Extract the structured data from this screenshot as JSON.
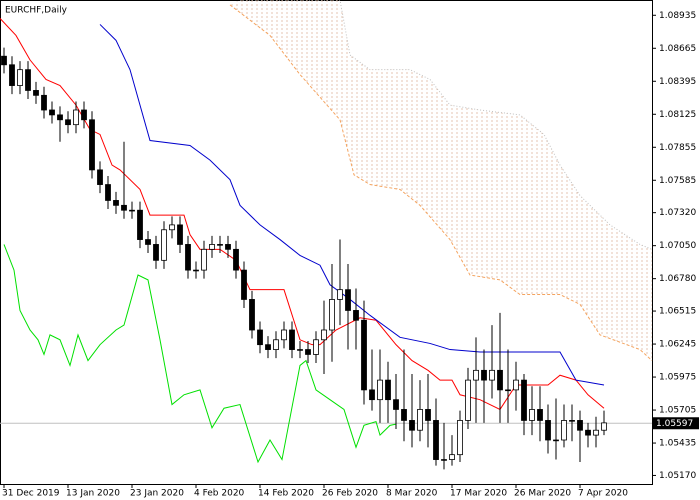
{
  "chart_data": {
    "type": "candlestick",
    "title": "EURCHF,Daily",
    "categories": [
      "31 Dec 2019",
      null,
      null,
      null,
      null,
      null,
      null,
      null,
      "13 Jan 2020",
      null,
      null,
      null,
      null,
      null,
      null,
      null,
      "23 Jan 2020",
      null,
      null,
      null,
      null,
      null,
      null,
      null,
      "4 Feb 2020",
      null,
      null,
      null,
      null,
      null,
      null,
      null,
      "14 Feb 2020",
      null,
      null,
      null,
      null,
      null,
      null,
      null,
      "26 Feb 2020",
      null,
      null,
      null,
      null,
      null,
      null,
      null,
      "8 Mar 2020",
      null,
      null,
      null,
      null,
      null,
      null,
      null,
      "17 Mar 2020",
      null,
      null,
      null,
      null,
      null,
      null,
      null,
      "26 Mar 2020",
      null,
      null,
      null,
      null,
      null,
      null,
      null,
      "7 Apr 2020",
      null,
      null,
      null
    ],
    "open": [
      1.086,
      1.0853,
      1.0836,
      1.0849,
      1.0832,
      1.0828,
      1.0816,
      1.0812,
      1.0808,
      1.0804,
      1.0816,
      1.0808,
      1.0767,
      1.0755,
      1.0742,
      1.0738,
      1.0734,
      1.0734,
      1.071,
      1.0706,
      1.0693,
      1.0718,
      1.0722,
      1.0706,
      1.0685,
      1.0685,
      1.0702,
      1.0706,
      1.0706,
      1.0702,
      1.0685,
      1.0661,
      1.0636,
      1.0624,
      1.062,
      1.0628,
      1.0636,
      1.062,
      1.062,
      1.0616,
      1.0628,
      1.0636,
      1.0661,
      1.0669,
      1.0652,
      1.0644,
      1.0587,
      1.0579,
      1.0595,
      1.0579,
      1.0571,
      1.0562,
      1.0554,
      1.0571,
      1.0562,
      1.053,
      1.053,
      1.0534,
      1.0562,
      1.0595,
      1.0603,
      1.0595,
      1.0603,
      1.0587,
      1.0587,
      1.0595,
      1.0562,
      1.0571,
      1.0562,
      1.0546,
      1.0546,
      1.0562,
      1.0562,
      1.0554,
      1.055,
      1.0554
    ],
    "high": [
      1.0867,
      1.086,
      1.0856,
      1.0856,
      1.0839,
      1.0835,
      1.0823,
      1.0819,
      1.0815,
      1.0823,
      1.0823,
      1.0815,
      1.0774,
      1.0762,
      1.0749,
      1.079,
      1.0741,
      1.0741,
      1.0717,
      1.0713,
      1.0725,
      1.0729,
      1.0729,
      1.0713,
      1.0692,
      1.0709,
      1.0713,
      1.0713,
      1.0713,
      1.0709,
      1.0692,
      1.0668,
      1.0643,
      1.0631,
      1.0635,
      1.0643,
      1.0643,
      1.0627,
      1.0627,
      1.0635,
      1.066,
      1.069,
      1.071,
      1.069,
      1.067,
      1.066,
      1.062,
      1.062,
      1.061,
      1.06,
      1.062,
      1.06,
      1.0595,
      1.06,
      1.058,
      1.056,
      1.055,
      1.057,
      1.0605,
      1.063,
      1.062,
      1.064,
      1.065,
      1.062,
      1.061,
      1.06,
      1.059,
      1.059,
      1.0575,
      1.058,
      1.0575,
      1.0575,
      1.057,
      1.056,
      1.0565,
      1.057
    ],
    "low": [
      1.0846,
      1.0829,
      1.0829,
      1.0825,
      1.0821,
      1.0809,
      1.0805,
      1.079,
      1.0797,
      1.0797,
      1.0801,
      1.076,
      1.0748,
      1.0735,
      1.0731,
      1.0727,
      1.0727,
      1.0703,
      1.0699,
      1.0686,
      1.0686,
      1.0711,
      1.0699,
      1.0678,
      1.0678,
      1.0678,
      1.0695,
      1.0699,
      1.0695,
      1.0678,
      1.0654,
      1.0629,
      1.0617,
      1.0613,
      1.0613,
      1.0621,
      1.0613,
      1.0613,
      1.0609,
      1.0609,
      1.06,
      1.061,
      1.064,
      1.062,
      1.062,
      1.0575,
      1.057,
      1.056,
      1.056,
      1.0555,
      1.0545,
      1.054,
      1.0545,
      1.054,
      1.0525,
      1.0522,
      1.0525,
      1.0528,
      1.0555,
      1.056,
      1.056,
      1.058,
      1.056,
      1.056,
      1.057,
      1.055,
      1.055,
      1.0545,
      1.0535,
      1.053,
      1.054,
      1.0545,
      1.0528,
      1.054,
      1.054,
      1.055
    ],
    "close": [
      1.0853,
      1.0836,
      1.0849,
      1.0832,
      1.0828,
      1.0816,
      1.0812,
      1.0808,
      1.0804,
      1.0816,
      1.0808,
      1.0767,
      1.0755,
      1.0742,
      1.0738,
      1.0734,
      1.0734,
      1.071,
      1.0706,
      1.0693,
      1.0718,
      1.0722,
      1.0706,
      1.0685,
      1.0685,
      1.0702,
      1.0706,
      1.0706,
      1.0702,
      1.0685,
      1.0661,
      1.0636,
      1.0624,
      1.062,
      1.0628,
      1.0636,
      1.062,
      1.062,
      1.0616,
      1.0628,
      1.0636,
      1.0661,
      1.0669,
      1.0652,
      1.0644,
      1.0587,
      1.0579,
      1.0595,
      1.0579,
      1.0571,
      1.0562,
      1.0554,
      1.0571,
      1.0562,
      1.053,
      1.053,
      1.0534,
      1.0562,
      1.0595,
      1.0603,
      1.0595,
      1.0603,
      1.0587,
      1.0587,
      1.0595,
      1.0562,
      1.0571,
      1.0562,
      1.0546,
      1.0546,
      1.0562,
      1.0562,
      1.0554,
      1.055,
      1.0554,
      1.056
    ],
    "series": [
      {
        "color": "#ff0000",
        "dash": "none",
        "x": [
          -0.5,
          1.5,
          3.25,
          5.25,
          7,
          9,
          10.75,
          12,
          13.5,
          14.5,
          17,
          18.25,
          22.5,
          23.25,
          24.5,
          27,
          29,
          30.75,
          35,
          37,
          38.5,
          39.5,
          41.5,
          44.5,
          46.5,
          49,
          51,
          53,
          54.5,
          56,
          57,
          59.5,
          62,
          64,
          68,
          69.5,
          71.5,
          73,
          75
        ],
        "values": [
          1.0891,
          1.0877,
          1.0857,
          1.0841,
          1.0836,
          1.082,
          1.08,
          1.0796,
          1.0771,
          1.0767,
          1.0751,
          1.073,
          1.073,
          1.0714,
          1.0702,
          1.0702,
          1.0693,
          1.0669,
          1.0669,
          1.0628,
          1.0624,
          1.0624,
          1.0636,
          1.0646,
          1.0644,
          1.0624,
          1.0611,
          1.0603,
          1.0595,
          1.0595,
          1.0583,
          1.0579,
          1.0571,
          1.0591,
          1.0591,
          1.0599,
          1.0595,
          1.0583,
          1.0572
        ]
      },
      {
        "color": "#0000cc",
        "dash": "none",
        "x": [
          12,
          14,
          15.75,
          18.25,
          23.25,
          25.75,
          28.25,
          29.5,
          32,
          34.5,
          37,
          39.5,
          40.75,
          43.25,
          45.75,
          49.5,
          53.25,
          55.75,
          59.5,
          69.5,
          71.5,
          75
        ],
        "values": [
          1.0886,
          1.0873,
          1.0849,
          1.0791,
          1.0787,
          1.0775,
          1.0759,
          1.0738,
          1.0722,
          1.071,
          1.0697,
          1.0689,
          1.0673,
          1.0661,
          1.0648,
          1.063,
          1.0625,
          1.062,
          1.0618,
          1.0618,
          1.0595,
          1.0591
        ]
      },
      {
        "color": "#00e000",
        "dash": "none",
        "x": [
          0,
          1.25,
          2,
          3.25,
          4.25,
          5,
          5.75,
          7,
          8.25,
          9.25,
          10.5,
          12,
          14,
          15,
          16.75,
          18,
          19.5,
          21,
          22.5,
          24.5,
          26,
          27.5,
          29.5,
          31.75,
          33.25,
          34.75,
          37,
          37.75,
          39,
          40.75,
          42.5,
          44,
          45,
          46.5,
          47,
          48.25,
          49
        ],
        "values": [
          1.0706,
          1.0685,
          1.0652,
          1.0636,
          1.0628,
          1.0616,
          1.0632,
          1.0628,
          1.0607,
          1.0632,
          1.0611,
          1.0624,
          1.0636,
          1.064,
          1.0681,
          1.0677,
          1.0628,
          1.0575,
          1.0583,
          1.0587,
          1.0556,
          1.0572,
          1.0575,
          1.0528,
          1.0546,
          1.053,
          1.0607,
          1.0611,
          1.0587,
          1.0579,
          1.0571,
          1.054,
          1.0558,
          1.0561,
          1.055,
          1.0558,
          1.0559
        ]
      },
      {
        "color": "#f4a460",
        "dash": "3 2",
        "x": [
          28.25,
          33.25,
          37,
          42,
          43.75,
          45.75,
          49.5,
          52,
          55.75,
          58.25,
          62,
          64.5,
          69.5,
          72,
          74.5,
          79.5,
          81
        ],
        "values": [
          1.0902,
          1.0877,
          1.0845,
          1.0808,
          1.0763,
          1.0755,
          1.0751,
          1.0738,
          1.071,
          1.0681,
          1.0677,
          1.0665,
          1.0665,
          1.0657,
          1.0632,
          1.062,
          1.0611
        ]
      },
      {
        "color": "#c0c0c0",
        "dash": "1 2",
        "x": [
          29.5,
          42,
          43.25,
          45.75,
          50.75,
          53.25,
          55.75,
          59.5,
          64.5,
          67.5,
          69.5,
          72,
          75.75,
          79.5,
          81
        ],
        "values": [
          1.0906,
          1.0906,
          1.0861,
          1.0849,
          1.0849,
          1.0841,
          1.082,
          1.0816,
          1.0812,
          1.0796,
          1.0771,
          1.0746,
          1.0722,
          1.0706,
          1.0702
        ]
      }
    ],
    "last_price": 1.05597,
    "ylim": [
      1.051,
      1.0906
    ],
    "yticks": [
      1.08935,
      1.08665,
      1.08395,
      1.08125,
      1.07855,
      1.07585,
      {
        "value": 1.0732,
        "label": "1.07320"
      },
      {
        "value": 1.0705,
        "label": "1.07050"
      },
      {
        "value": 1.0678,
        "label": "1.06780"
      },
      1.06515,
      1.06245,
      1.05975,
      1.05705,
      1.05435,
      {
        "value": 1.0517,
        "label": "1.05170"
      }
    ]
  }
}
